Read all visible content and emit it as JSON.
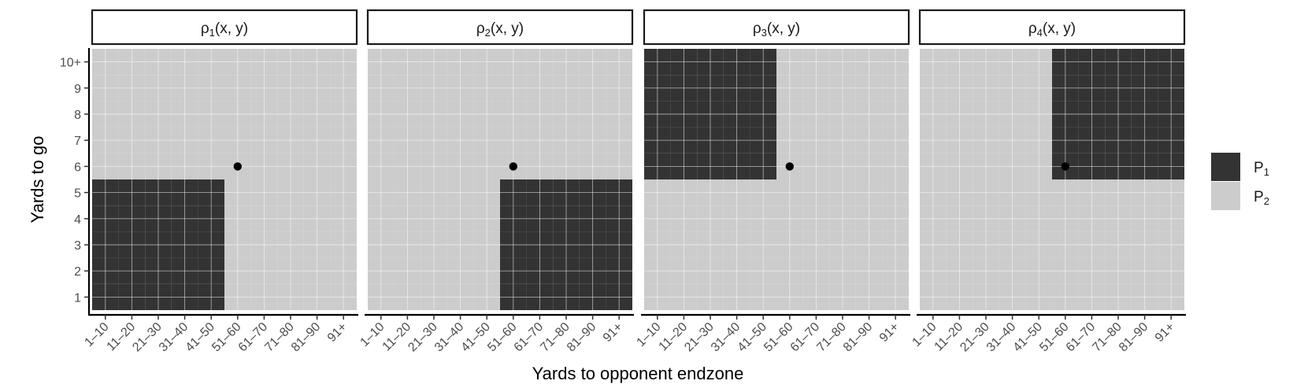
{
  "chart_data": {
    "type": "heatmap",
    "xlabel": "Yards to opponent endzone",
    "ylabel": "Yards to go",
    "x_categories": [
      "1–10",
      "11–20",
      "21–30",
      "31–40",
      "41–50",
      "51–60",
      "61–70",
      "71–80",
      "81–90",
      "91+"
    ],
    "y_categories": [
      "1",
      "2",
      "3",
      "4",
      "5",
      "6",
      "7",
      "8",
      "9",
      "10+"
    ],
    "legend": {
      "placement": "right",
      "entries": [
        {
          "label": "P",
          "sub": "1",
          "color": "#333333"
        },
        {
          "label": "P",
          "sub": "2",
          "color": "#cccccc"
        }
      ]
    },
    "facets": [
      {
        "title_base": "ρ",
        "title_sub": "1",
        "title_rest": "(x, y)",
        "p1_x_range": [
          1,
          5
        ],
        "p1_y_range": [
          1,
          5
        ],
        "point": {
          "x": 5.5,
          "y": 5.5
        }
      },
      {
        "title_base": "ρ",
        "title_sub": "2",
        "title_rest": "(x, y)",
        "p1_x_range": [
          6,
          10
        ],
        "p1_y_range": [
          1,
          5
        ],
        "point": {
          "x": 5.5,
          "y": 5.5
        }
      },
      {
        "title_base": "ρ",
        "title_sub": "3",
        "title_rest": "(x, y)",
        "p1_x_range": [
          1,
          5
        ],
        "p1_y_range": [
          6,
          10
        ],
        "point": {
          "x": 5.5,
          "y": 5.5
        }
      },
      {
        "title_base": "ρ",
        "title_sub": "4",
        "title_rest": "(x, y)",
        "p1_x_range": [
          6,
          10
        ],
        "p1_y_range": [
          6,
          10
        ],
        "point": {
          "x": 5.5,
          "y": 5.5
        }
      }
    ]
  }
}
